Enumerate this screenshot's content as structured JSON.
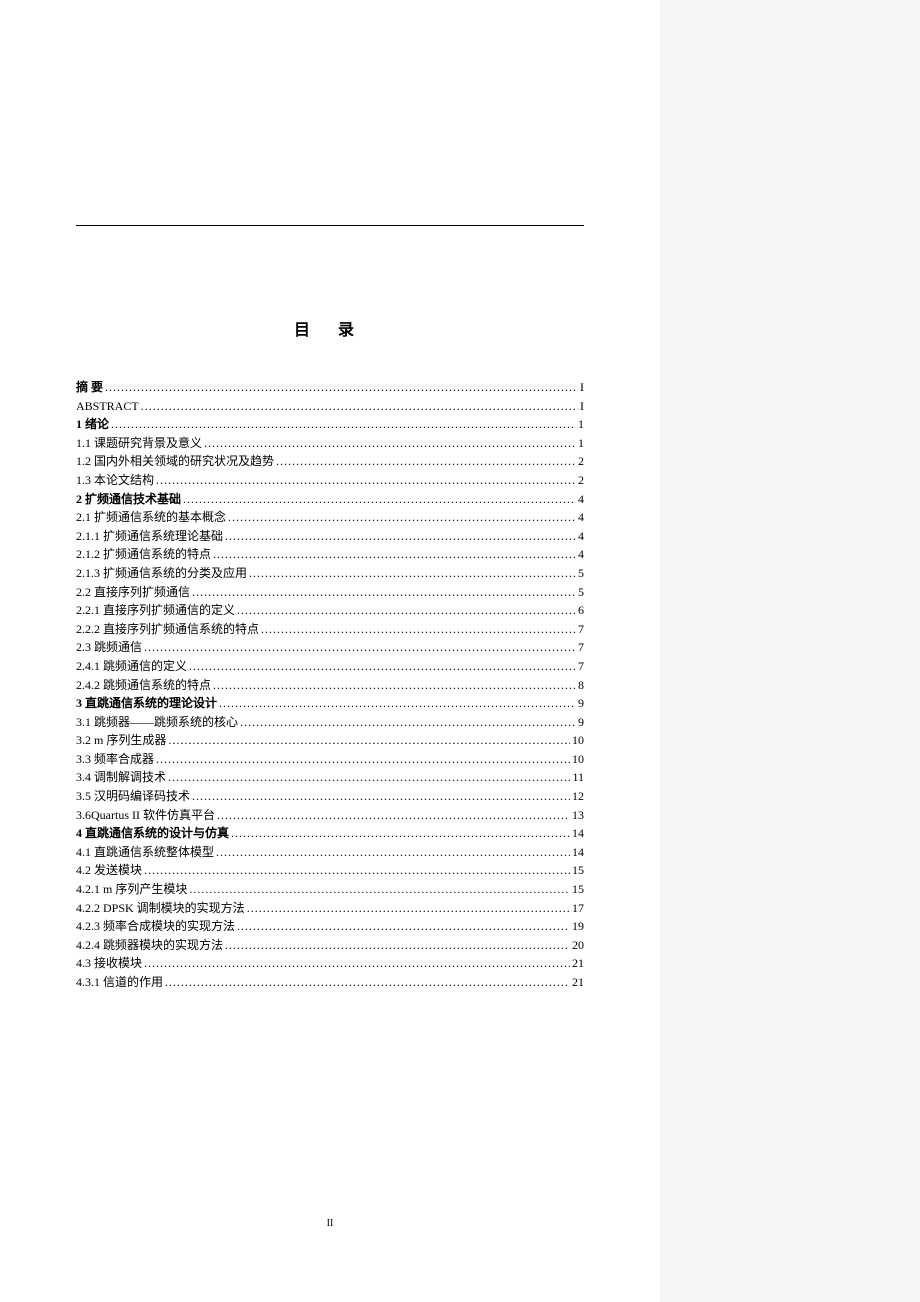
{
  "title": "目 录",
  "pageNumber": "II",
  "colors": {
    "background": "#ffffff",
    "sidebar": "#f5f5f5",
    "text": "#000000",
    "line": "#000000"
  },
  "typography": {
    "title_fontsize": 16,
    "entry_fontsize": 12,
    "line_height": 1.55,
    "font_family": "SimSun"
  },
  "entries": [
    {
      "label": "摘   要",
      "page": "I",
      "bold": true
    },
    {
      "label": "ABSTRACT",
      "page": "I",
      "bold": false
    },
    {
      "label": "1  绪论",
      "page": "1",
      "bold": true
    },
    {
      "label": "1.1  课题研究背景及意义",
      "page": "1",
      "bold": false
    },
    {
      "label": "1.2  国内外相关领域的研究状况及趋势",
      "page": "2",
      "bold": false
    },
    {
      "label": "1.3  本论文结构",
      "page": "2",
      "bold": false
    },
    {
      "label": "2  扩频通信技术基础",
      "page": "4",
      "bold": true
    },
    {
      "label": "2.1  扩频通信系统的基本概念",
      "page": "4",
      "bold": false
    },
    {
      "label": "2.1.1  扩频通信系统理论基础",
      "page": "4",
      "bold": false
    },
    {
      "label": "2.1.2  扩频通信系统的特点",
      "page": "4",
      "bold": false
    },
    {
      "label": "2.1.3  扩频通信系统的分类及应用",
      "page": "5",
      "bold": false
    },
    {
      "label": "2.2 直接序列扩频通信 ",
      "page": "5",
      "bold": false
    },
    {
      "label": "2.2.1  直接序列扩频通信的定义",
      "page": "6",
      "bold": false
    },
    {
      "label": "2.2.2  直接序列扩频通信系统的特点",
      "page": "7",
      "bold": false
    },
    {
      "label": "2.3  跳频通信",
      "page": "7",
      "bold": false
    },
    {
      "label": "2.4.1  跳频通信的定义",
      "page": "7",
      "bold": false
    },
    {
      "label": "2.4.2  跳频通信系统的特点",
      "page": "8",
      "bold": false
    },
    {
      "label": "3  直跳通信系统的理论设计",
      "page": "9",
      "bold": true
    },
    {
      "label": "3.1  跳频器——跳频系统的核心",
      "page": "9",
      "bold": false
    },
    {
      "label": "3.2 m 序列生成器",
      "page": "10",
      "bold": false
    },
    {
      "label": "3.3 频率合成器",
      "page": "10",
      "bold": false
    },
    {
      "label": "3.4 调制解调技术",
      "page": "11",
      "bold": false
    },
    {
      "label": "3.5 汉明码编译码技术",
      "page": "12",
      "bold": false
    },
    {
      "label": "3.6Quartus II 软件仿真平台",
      "page": "13",
      "bold": false
    },
    {
      "label": "4  直跳通信系统的设计与仿真",
      "page": "14",
      "bold": true
    },
    {
      "label": "4.1 直跳通信系统整体模型",
      "page": "14",
      "bold": false
    },
    {
      "label": "4.2  发送模块",
      "page": "15",
      "bold": false
    },
    {
      "label": "4.2.1 m 序列产生模块",
      "page": "15",
      "bold": false
    },
    {
      "label": "4.2.2 DPSK 调制模块的实现方法",
      "page": "17",
      "bold": false
    },
    {
      "label": "4.2.3  频率合成模块的实现方法",
      "page": "19",
      "bold": false
    },
    {
      "label": "4.2.4 跳频器模块的实现方法",
      "page": "20",
      "bold": false
    },
    {
      "label": "4.3  接收模块",
      "page": "21",
      "bold": false
    },
    {
      "label": "4.3.1  信道的作用",
      "page": "21",
      "bold": false
    }
  ]
}
